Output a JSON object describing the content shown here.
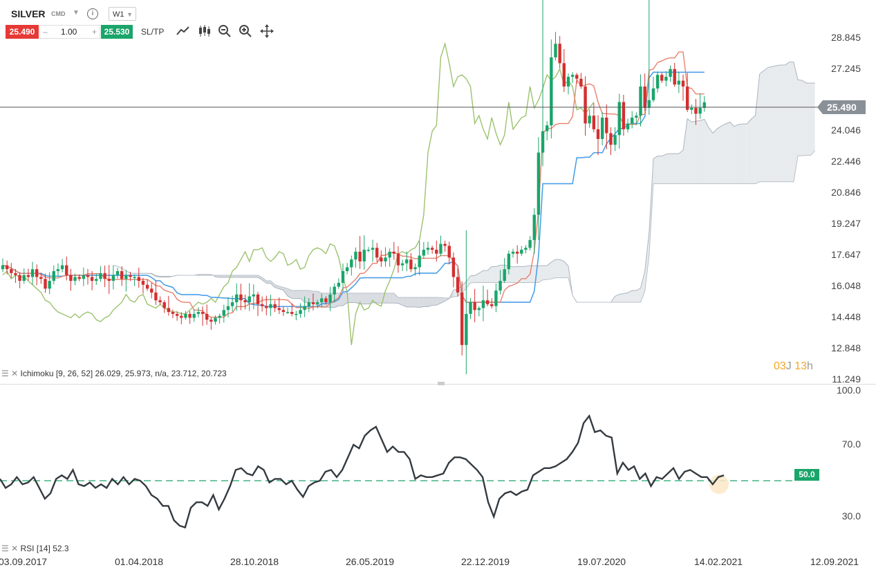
{
  "header": {
    "symbol": "SILVER",
    "market": "CMD",
    "timeframe": "W1",
    "sell_price": "25.490",
    "quantity": "1.00",
    "buy_price": "25.530",
    "sltp_label": "SL/TP",
    "info_icon": "info-icon",
    "tools": [
      "line-chart-icon",
      "candlestick-icon",
      "zoom-out-icon",
      "zoom-in-icon",
      "move-icon"
    ]
  },
  "indicators": {
    "ichimoku_label": "Ichimoku [9, 26, 52] 26.029, 25.973, n/a, 23.712, 20.723",
    "rsi_label": "RSI [14] 52.3"
  },
  "timer": {
    "days": "03",
    "days_unit": "J",
    "hours": "13",
    "hours_unit": "h"
  },
  "current_price_tag": "25.490",
  "rsi_level_tag": "50.0",
  "colors": {
    "up": "#1aa56a",
    "down": "#d32f2f",
    "tenkan": "#e8806c",
    "kijun": "#4a9fe8",
    "chikou": "#9cc26e",
    "cloud": "#ccd2d8",
    "rsi": "#333a40"
  },
  "chart_data": [
    {
      "type": "candlestick",
      "title": "",
      "y_ticks": [
        "28.845",
        "27.245",
        "24.046",
        "22.446",
        "20.846",
        "19.247",
        "17.647",
        "16.048",
        "14.448",
        "12.848",
        "11.249"
      ],
      "x_ticks": [
        "03.09.2017",
        "01.04.2018",
        "28.10.2018",
        "26.05.2019",
        "22.12.2019",
        "19.07.2020",
        "14.02.2021",
        "12.09.2021"
      ],
      "ylim": [
        11.249,
        31.2
      ],
      "current_price": 25.49,
      "overlays": [
        "Tenkan",
        "Kijun",
        "Chikou",
        "Senkou span A",
        "Senkou span B"
      ],
      "approx_closes": [
        17.1,
        16.9,
        16.7,
        16.6,
        16.3,
        16.6,
        16.5,
        16.9,
        16.5,
        16.4,
        15.9,
        16.3,
        16.8,
        16.9,
        17.1,
        16.6,
        16.3,
        16.5,
        16.4,
        16.6,
        16.5,
        16.3,
        16.4,
        16.7,
        16.4,
        16.3,
        16.6,
        16.8,
        16.4,
        16.6,
        16.5,
        16.5,
        16.3,
        16.1,
        15.9,
        15.7,
        15.3,
        15.2,
        14.9,
        14.7,
        14.6,
        14.5,
        14.4,
        14.6,
        14.4,
        14.6,
        14.7,
        14.6,
        14.3,
        14.2,
        14.4,
        14.5,
        14.8,
        15.0,
        15.2,
        15.6,
        15.3,
        15.2,
        15.5,
        15.6,
        15.1,
        15.0,
        14.9,
        15.1,
        14.9,
        14.8,
        14.7,
        14.7,
        14.6,
        14.6,
        14.8,
        15.0,
        15.2,
        15.1,
        15.2,
        15.4,
        15.2,
        15.6,
        16.0,
        16.2,
        16.8,
        17.0,
        17.4,
        17.8,
        17.3,
        17.9,
        17.9,
        18.0,
        17.5,
        17.3,
        17.5,
        17.8,
        17.7,
        17.1,
        17.2,
        17.4,
        16.9,
        17.0,
        17.6,
        17.9,
        18.0,
        17.9,
        17.7,
        18.2,
        18.1,
        17.5,
        16.5,
        15.7,
        13.0,
        14.6,
        15.2,
        14.8,
        14.9,
        15.3,
        15.1,
        15.0,
        15.8,
        16.3,
        16.9,
        17.7,
        17.8,
        17.7,
        17.9,
        18.0,
        18.4,
        19.7,
        22.9,
        24.0,
        24.3,
        27.8,
        28.5,
        27.5,
        26.3,
        26.8,
        26.9,
        26.7,
        26.3,
        24.4,
        24.8,
        24.1,
        23.6,
        24.7,
        23.9,
        23.3,
        23.8,
        25.5,
        24.1,
        24.4,
        24.7,
        24.8,
        26.3,
        25.2,
        25.6,
        26.2,
        26.9,
        26.6,
        26.8,
        27.2,
        26.4,
        26.6,
        26.3,
        25.1,
        25.2,
        24.9,
        25.2,
        25.49
      ]
    },
    {
      "type": "line",
      "title": "",
      "y_ticks": [
        "100.0",
        "70.0",
        "30.0"
      ],
      "ylim": [
        0,
        100
      ],
      "reference_level": 50,
      "approx_values": [
        51,
        46,
        48,
        52,
        48,
        49,
        52,
        46,
        40,
        43,
        51,
        53,
        51,
        56,
        48,
        47,
        49,
        46,
        48,
        46,
        51,
        48,
        52,
        48,
        51,
        50,
        47,
        42,
        40,
        36,
        36,
        28,
        25,
        24,
        35,
        38,
        38,
        36,
        42,
        34,
        40,
        47,
        56,
        57,
        54,
        53,
        58,
        56,
        49,
        51,
        51,
        48,
        50,
        45,
        41,
        47,
        49,
        50,
        55,
        56,
        52,
        56,
        63,
        70,
        68,
        75,
        78,
        80,
        73,
        66,
        69,
        66,
        66,
        62,
        51,
        53,
        52,
        52,
        53,
        54,
        60,
        63,
        63,
        62,
        59,
        56,
        52,
        38,
        30,
        40,
        43,
        44,
        42,
        44,
        45,
        53,
        55,
        57,
        57,
        58,
        60,
        62,
        66,
        71,
        82,
        86,
        77,
        78,
        75,
        74,
        54,
        60,
        56,
        58,
        51,
        54,
        47,
        52,
        51,
        54,
        57,
        51,
        55,
        56,
        54,
        52,
        52,
        48,
        52,
        53
      ]
    }
  ]
}
